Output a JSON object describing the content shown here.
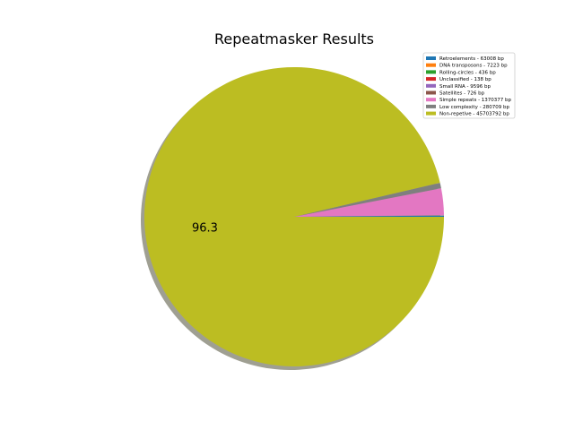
{
  "chart_data": {
    "type": "pie",
    "title": "Repeatmasker Results",
    "legend_position": "upper-right",
    "shadow": true,
    "start_angle_deg": 0,
    "slices": [
      {
        "label": "Retroelements - 63008 bp",
        "value": 63008,
        "color": "#1f77b4"
      },
      {
        "label": "DNA transposons - 7223 bp",
        "value": 7223,
        "color": "#ff7f0e"
      },
      {
        "label": "Rolling-circles - 436 bp",
        "value": 436,
        "color": "#2ca02c"
      },
      {
        "label": "Unclassified - 138 bp",
        "value": 138,
        "color": "#d62728"
      },
      {
        "label": "Small RNA - 9596 bp",
        "value": 9596,
        "color": "#9467bd"
      },
      {
        "label": "Satellites - 726 bp",
        "value": 726,
        "color": "#8c564b"
      },
      {
        "label": "Simple repeats - 1370377 bp",
        "value": 1370377,
        "color": "#e377c2"
      },
      {
        "label": "Low complexity - 280709 bp",
        "value": 280709,
        "color": "#7f7f7f"
      },
      {
        "label": "Non-repetive  - 45703792 bp",
        "value": 45703792,
        "color": "#bcbd22"
      }
    ],
    "data_labels": [
      {
        "slice": "Non-repetive  - 45703792 bp",
        "text": "96.3"
      }
    ]
  }
}
